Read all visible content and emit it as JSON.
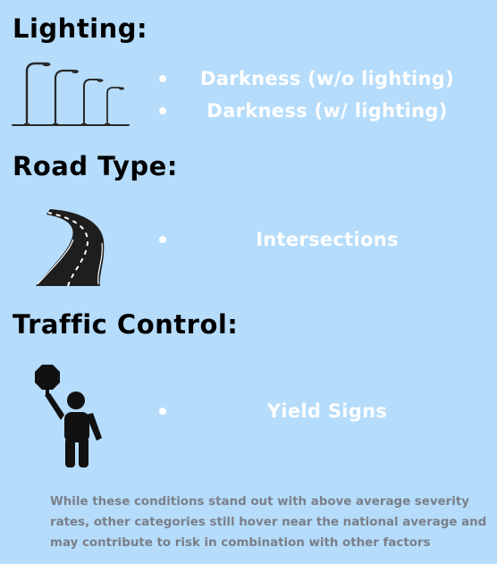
{
  "sections": {
    "lighting": {
      "heading": "Lighting:",
      "icon": "street-lights-icon",
      "items": [
        "Darkness (w/o lighting)",
        "Darkness (w/ lighting)"
      ]
    },
    "road_type": {
      "heading": "Road Type:",
      "icon": "winding-road-icon",
      "items": [
        "Intersections"
      ]
    },
    "traffic_control": {
      "heading": "Traffic Control:",
      "icon": "stop-sign-person-icon",
      "items": [
        "Yield Signs"
      ]
    }
  },
  "note": "While these conditions stand out with above average severity rates, other categories still hover near the national average and may contribute to risk in combination with other factors",
  "colors": {
    "background": "#b5dcfb",
    "heading": "#000000",
    "bullet_text": "#ffffff",
    "note_text": "#7a7f89"
  }
}
